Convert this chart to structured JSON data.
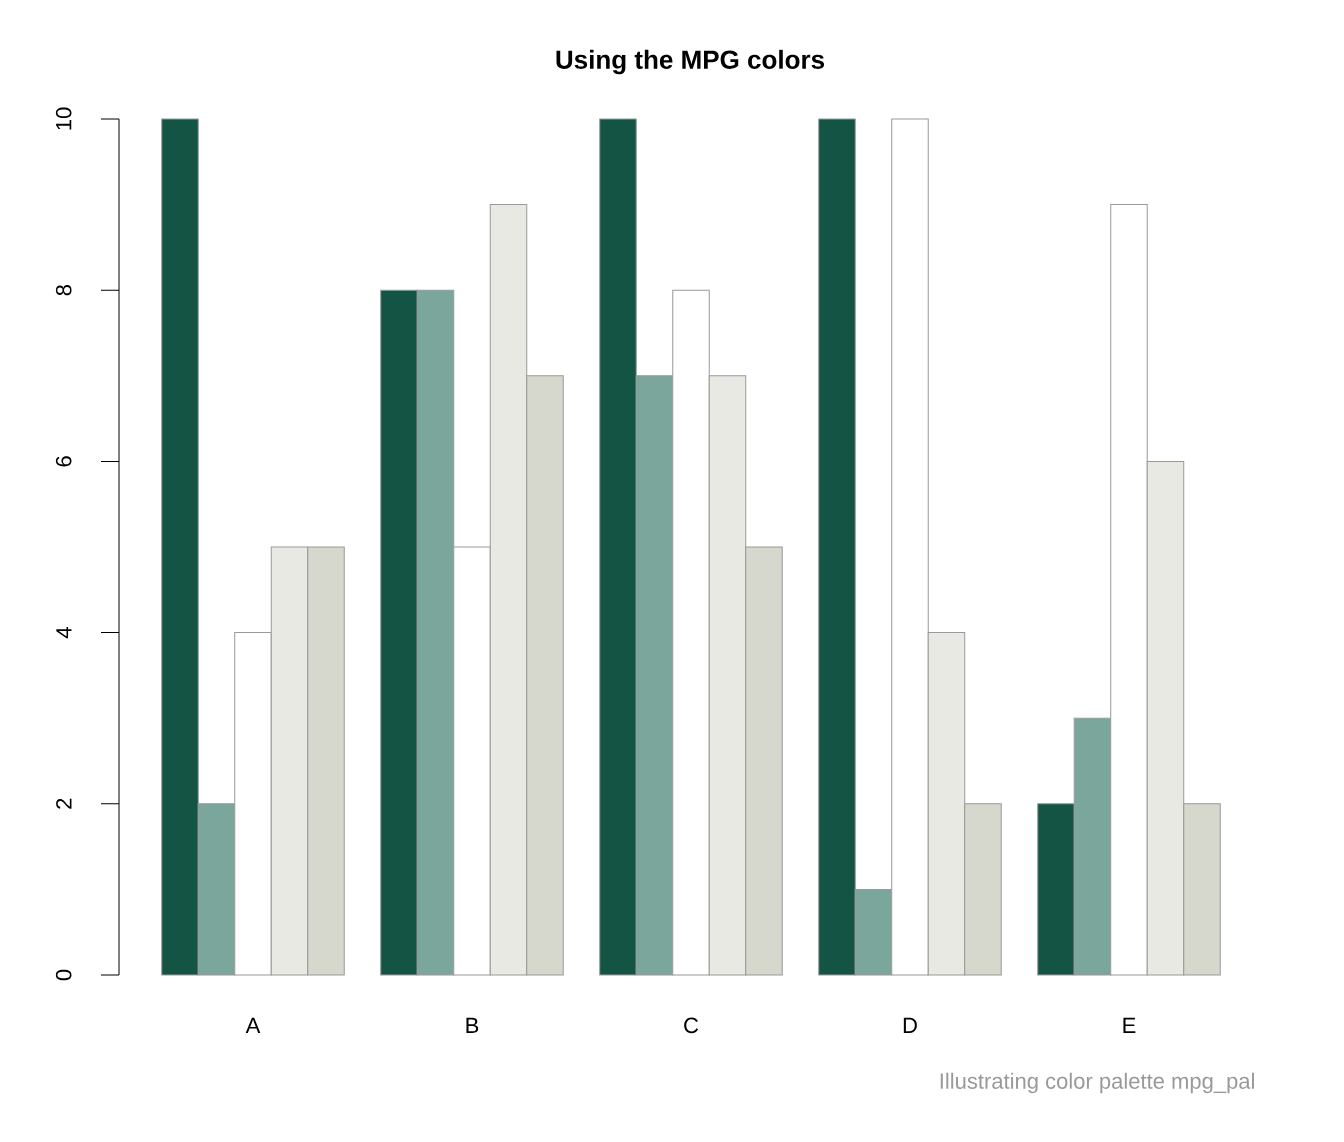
{
  "chart_data": {
    "type": "bar",
    "title": "Using the MPG colors",
    "categories": [
      "A",
      "B",
      "C",
      "D",
      "E"
    ],
    "series": [
      {
        "color": "#135444",
        "values": [
          10,
          8,
          10,
          10,
          2
        ]
      },
      {
        "color": "#7aa69c",
        "values": [
          2,
          8,
          7,
          1,
          3
        ]
      },
      {
        "color": "#ffffff",
        "values": [
          4,
          5,
          8,
          10,
          9
        ]
      },
      {
        "color": "#e9e9e4",
        "values": [
          5,
          9,
          7,
          4,
          6
        ]
      },
      {
        "color": "#d6d7cd",
        "values": [
          5,
          7,
          5,
          2,
          2
        ]
      }
    ],
    "ylim": [
      0,
      10
    ],
    "yticks": [
      0,
      2,
      4,
      6,
      8,
      10
    ],
    "annotations": [
      "Illustrating color palette mpg_pal"
    ]
  }
}
